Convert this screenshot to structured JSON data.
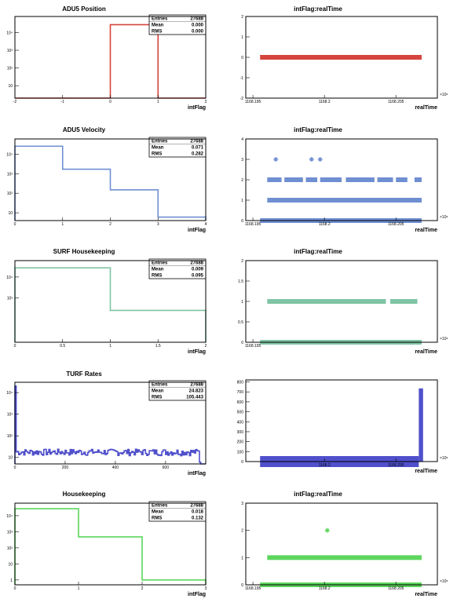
{
  "chart_data": [
    {
      "type": "histogram",
      "title": "ADU5 Position",
      "xlabel": "intFlag",
      "ylabel": "",
      "xlim": [
        -2,
        2
      ],
      "yscale": "log",
      "ylim": [
        2,
        80000
      ],
      "xticks": [
        {
          "v": -2,
          "t": "-2"
        },
        {
          "v": -1,
          "t": "-1"
        },
        {
          "v": 0,
          "t": "0"
        },
        {
          "v": 1,
          "t": "1"
        },
        {
          "v": 2,
          "t": "2"
        }
      ],
      "yticks": [
        {
          "v": 10,
          "t": "10"
        },
        {
          "v": 100,
          "t": "10²"
        },
        {
          "v": 1000,
          "t": "10³"
        },
        {
          "v": 10000,
          "t": "10⁴"
        }
      ],
      "bins": [
        [
          -2,
          -1,
          0
        ],
        [
          -1,
          0,
          0
        ],
        [
          0,
          1,
          27688
        ],
        [
          1,
          2,
          0
        ]
      ],
      "stats": {
        "entries_label": "Entries",
        "entries": "27688",
        "mean_label": "Mean",
        "mean": "0.000",
        "rms_label": "RMS",
        "rms": "0.000"
      },
      "color": "#d6453d"
    },
    {
      "type": "scatter",
      "title": "intFlag:realTime",
      "xlabel": "realTime",
      "xlim": [
        1168.1945,
        1168.2079
      ],
      "ylim": [
        -2,
        2
      ],
      "xticks": [
        {
          "v": 1168.195,
          "t": "1168.195"
        },
        {
          "v": 1168.2,
          "t": "1168.2"
        },
        {
          "v": 1168.205,
          "t": "1168.205"
        }
      ],
      "yticks": [
        {
          "v": -2,
          "t": "-2"
        },
        {
          "v": -1,
          "t": "-1"
        },
        {
          "v": 0,
          "t": "0"
        },
        {
          "v": 1,
          "t": "1"
        },
        {
          "v": 2,
          "t": "2"
        }
      ],
      "exponent": "×10⁶",
      "bands": [
        {
          "y": 0,
          "x0": 1168.1955,
          "x1": 1168.2068
        }
      ],
      "points": [],
      "color": "#d6453d"
    },
    {
      "type": "histogram",
      "title": "ADU5 Velocity",
      "xlabel": "intFlag",
      "xlim": [
        0,
        4
      ],
      "yscale": "log",
      "ylim": [
        4,
        60000
      ],
      "xticks": [
        {
          "v": 0,
          "t": "0"
        },
        {
          "v": 1,
          "t": "1"
        },
        {
          "v": 2,
          "t": "2"
        },
        {
          "v": 3,
          "t": "3"
        },
        {
          "v": 4,
          "t": "4"
        }
      ],
      "yticks": [
        {
          "v": 10,
          "t": "10"
        },
        {
          "v": 100,
          "t": "10²"
        },
        {
          "v": 1000,
          "t": "10³"
        },
        {
          "v": 10000,
          "t": "10⁴"
        }
      ],
      "bins": [
        [
          0,
          1,
          25500
        ],
        [
          1,
          2,
          1700
        ],
        [
          2,
          3,
          150
        ],
        [
          3,
          4,
          6
        ]
      ],
      "stats": {
        "entries_label": "Entries",
        "entries": "27688",
        "mean_label": "Mean",
        "mean": "0.071",
        "rms_label": "RMS",
        "rms": "0.282"
      },
      "color": "#6f8fd2"
    },
    {
      "type": "scatter",
      "title": "intFlag:realTime",
      "xlabel": "realTime",
      "xlim": [
        1168.1945,
        1168.2079
      ],
      "ylim": [
        0,
        4
      ],
      "xticks": [
        {
          "v": 1168.195,
          "t": "1168.195"
        },
        {
          "v": 1168.2,
          "t": "1168.2"
        },
        {
          "v": 1168.205,
          "t": "1168.205"
        }
      ],
      "yticks": [
        {
          "v": 0,
          "t": "0"
        },
        {
          "v": 1,
          "t": "1"
        },
        {
          "v": 2,
          "t": "2"
        },
        {
          "v": 3,
          "t": "3"
        },
        {
          "v": 4,
          "t": "4"
        }
      ],
      "exponent": "×10⁶",
      "bands": [
        {
          "y": 0,
          "x0": 1168.1955,
          "x1": 1168.2068
        },
        {
          "y": 1,
          "x0": 1168.196,
          "x1": 1168.2068
        },
        {
          "y": 2,
          "x0": 1168.196,
          "x1": 1168.197
        },
        {
          "y": 2,
          "x0": 1168.1972,
          "x1": 1168.1985
        },
        {
          "y": 2,
          "x0": 1168.1987,
          "x1": 1168.1995
        },
        {
          "y": 2,
          "x0": 1168.1997,
          "x1": 1168.2012
        },
        {
          "y": 2,
          "x0": 1168.2015,
          "x1": 1168.2035
        },
        {
          "y": 2,
          "x0": 1168.2037,
          "x1": 1168.2048
        },
        {
          "y": 2,
          "x0": 1168.205,
          "x1": 1168.2058
        },
        {
          "y": 2,
          "x0": 1168.2063,
          "x1": 1168.2068
        }
      ],
      "points": [
        [
          1168.1966,
          3
        ],
        [
          1168.1991,
          3
        ],
        [
          1168.1997,
          3
        ]
      ],
      "color": "#6f8fd2"
    },
    {
      "type": "histogram",
      "title": "SURF Housekeeping",
      "xlabel": "intFlag",
      "xlim": [
        0,
        2
      ],
      "yscale": "log",
      "ylim": [
        8,
        60000
      ],
      "xticks": [
        {
          "v": 0,
          "t": "0"
        },
        {
          "v": 0.5,
          "t": "0.5"
        },
        {
          "v": 1,
          "t": "1"
        },
        {
          "v": 1.5,
          "t": "1.5"
        },
        {
          "v": 2,
          "t": "2"
        }
      ],
      "yticks": [
        {
          "v": 1000,
          "t": "10³"
        },
        {
          "v": 10000,
          "t": "10⁴"
        }
      ],
      "bins": [
        [
          0,
          1,
          27400
        ],
        [
          1,
          2,
          260
        ]
      ],
      "stats": {
        "entries_label": "Entries",
        "entries": "27688",
        "mean_label": "Mean",
        "mean": "0.009",
        "rms_label": "RMS",
        "rms": "0.095"
      },
      "color": "#7fc4a4"
    },
    {
      "type": "scatter",
      "title": "intFlag:realTime",
      "xlabel": "realTime",
      "xlim": [
        1168.1945,
        1168.2079
      ],
      "ylim": [
        0,
        2
      ],
      "xticks": [
        {
          "v": 1168.195,
          "t": "1168.195"
        }
      ],
      "yticks": [
        {
          "v": 0,
          "t": "0"
        },
        {
          "v": 0.5,
          "t": "0.5"
        },
        {
          "v": 1,
          "t": "1"
        },
        {
          "v": 1.5,
          "t": "1.5"
        },
        {
          "v": 2,
          "t": "2"
        }
      ],
      "exponent": "×10⁶",
      "bands": [
        {
          "y": 0,
          "x0": 1168.1955,
          "x1": 1168.2068
        },
        {
          "y": 1,
          "x0": 1168.196,
          "x1": 1168.2043
        },
        {
          "y": 1,
          "x0": 1168.2046,
          "x1": 1168.2065
        }
      ],
      "points": [],
      "color": "#7fc4a4"
    },
    {
      "type": "histogram",
      "title": "TURF Rates",
      "xlabel": "intFlag",
      "xlim": [
        0,
        760
      ],
      "yscale": "log",
      "ylim": [
        5,
        30000
      ],
      "xticks": [
        {
          "v": 0,
          "t": "0"
        },
        {
          "v": 200,
          "t": "200"
        },
        {
          "v": 400,
          "t": "400"
        },
        {
          "v": 600,
          "t": "600"
        }
      ],
      "yticks": [
        {
          "v": 10,
          "t": "10"
        },
        {
          "v": 100,
          "t": "10²"
        },
        {
          "v": 1000,
          "t": "10³"
        },
        {
          "v": 10000,
          "t": "10⁴"
        }
      ],
      "noise": {
        "x0": 5,
        "x1": 735,
        "binw": 5,
        "lo": 12,
        "hi": 24,
        "seed": 7
      },
      "spike": {
        "x0": 0,
        "x1": 5,
        "v": 20000
      },
      "bins": [
        [
          735,
          740,
          6
        ],
        [
          740,
          760,
          0
        ]
      ],
      "stats": {
        "entries_label": "Entries",
        "entries": "27688",
        "mean_label": "Mean",
        "mean": "24.823",
        "rms_label": "RMS",
        "rms": "105.443"
      },
      "color": "#5050cc"
    },
    {
      "type": "scatter",
      "title": "",
      "xlabel": "realTime",
      "xlim": [
        1168.1945,
        1168.2079
      ],
      "ylim": [
        0,
        820
      ],
      "xticks": [
        {
          "v": 1168.2,
          "t": "1168.2"
        },
        {
          "v": 1168.205,
          "t": "1168.205"
        }
      ],
      "yticks": [
        {
          "v": 0,
          "t": "0"
        },
        {
          "v": 100,
          "t": "100"
        },
        {
          "v": 200,
          "t": "200"
        },
        {
          "v": 300,
          "t": "300"
        },
        {
          "v": 400,
          "t": "400"
        },
        {
          "v": 500,
          "t": "500"
        },
        {
          "v": 600,
          "t": "600"
        },
        {
          "v": 700,
          "t": "700"
        },
        {
          "v": 800,
          "t": "800"
        }
      ],
      "exponent": "×10⁶",
      "bands": [
        {
          "y": 0,
          "x0": 1168.1955,
          "x1": 1168.2066,
          "h": 14
        }
      ],
      "spikeBand": {
        "x0": 1168.2066,
        "x1": 1168.2069,
        "y0": 0,
        "y1": 735
      },
      "points": [],
      "color": "#5050cc"
    },
    {
      "type": "histogram",
      "title": "Housekeeping",
      "xlabel": "intFlag",
      "xlim": [
        0,
        3
      ],
      "yscale": "log",
      "ylim": [
        0.5,
        60000
      ],
      "xticks": [
        {
          "v": 0,
          "t": "0"
        },
        {
          "v": 1,
          "t": "1"
        },
        {
          "v": 2,
          "t": "2"
        },
        {
          "v": 3,
          "t": "3"
        }
      ],
      "yticks": [
        {
          "v": 1,
          "t": "1"
        },
        {
          "v": 10,
          "t": "10"
        },
        {
          "v": 100,
          "t": "10²"
        },
        {
          "v": 1000,
          "t": "10³"
        },
        {
          "v": 10000,
          "t": "10⁴"
        }
      ],
      "bins": [
        [
          0,
          1,
          27200
        ],
        [
          1,
          2,
          480
        ],
        [
          2,
          3,
          1
        ]
      ],
      "stats": {
        "entries_label": "Entries",
        "entries": "27688",
        "mean_label": "Mean",
        "mean": "0.018",
        "rms_label": "RMS",
        "rms": "0.132"
      },
      "color": "#5dd65d"
    },
    {
      "type": "scatter",
      "title": "intFlag:realTime",
      "xlabel": "realTime",
      "xlim": [
        1168.1945,
        1168.2079
      ],
      "ylim": [
        0,
        3
      ],
      "xticks": [
        {
          "v": 1168.195,
          "t": "1168.195"
        },
        {
          "v": 1168.2,
          "t": "1168.2"
        },
        {
          "v": 1168.205,
          "t": "1168.205"
        }
      ],
      "yticks": [
        {
          "v": 0,
          "t": "0"
        },
        {
          "v": 1,
          "t": "1"
        },
        {
          "v": 2,
          "t": "2"
        },
        {
          "v": 3,
          "t": "3"
        }
      ],
      "exponent": "×10⁶",
      "bands": [
        {
          "y": 0,
          "x0": 1168.1955,
          "x1": 1168.2068
        },
        {
          "y": 1,
          "x0": 1168.196,
          "x1": 1168.2068
        }
      ],
      "points": [
        [
          1168.2002,
          2
        ]
      ],
      "color": "#5dd65d"
    }
  ]
}
